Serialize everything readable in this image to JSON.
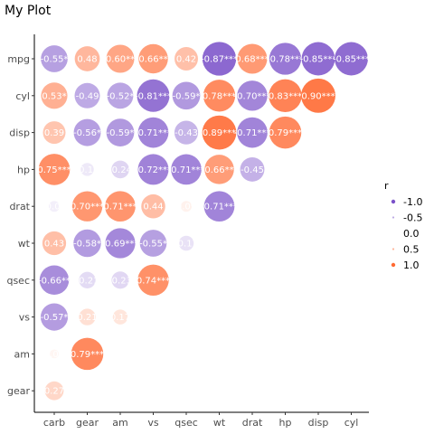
{
  "chart_data": {
    "type": "scatter",
    "title": "My Plot",
    "xlabel": "",
    "ylabel": "",
    "x_categories": [
      "carb",
      "gear",
      "am",
      "vs",
      "qsec",
      "wt",
      "drat",
      "hp",
      "disp",
      "cyl"
    ],
    "y_categories": [
      "mpg",
      "cyl",
      "disp",
      "hp",
      "drat",
      "wt",
      "qsec",
      "vs",
      "am",
      "gear"
    ],
    "color_scale": {
      "negative": "#7b52c9",
      "zero": "#ffffff",
      "positive": "#ff6a33",
      "domain": [
        -1,
        1
      ]
    },
    "legend": {
      "title": "r",
      "placement": "right",
      "entries": [
        {
          "label": "-1.0",
          "value": -1.0
        },
        {
          "label": "-0.5",
          "value": -0.5
        },
        {
          "label": "0.0",
          "value": 0.0
        },
        {
          "label": "0.5",
          "value": 0.5
        },
        {
          "label": "1.0",
          "value": 1.0
        }
      ]
    },
    "grid": false,
    "points": [
      {
        "row": "mpg",
        "col": "carb",
        "r": -0.55,
        "label": "-0.55*"
      },
      {
        "row": "mpg",
        "col": "gear",
        "r": 0.48,
        "label": "0.48"
      },
      {
        "row": "mpg",
        "col": "am",
        "r": 0.6,
        "label": "0.60**"
      },
      {
        "row": "mpg",
        "col": "vs",
        "r": 0.66,
        "label": "0.66**"
      },
      {
        "row": "mpg",
        "col": "qsec",
        "r": 0.42,
        "label": "0.42"
      },
      {
        "row": "mpg",
        "col": "wt",
        "r": -0.87,
        "label": "-0.87***"
      },
      {
        "row": "mpg",
        "col": "drat",
        "r": 0.68,
        "label": "0.68***"
      },
      {
        "row": "mpg",
        "col": "hp",
        "r": -0.78,
        "label": "-0.78***"
      },
      {
        "row": "mpg",
        "col": "disp",
        "r": -0.85,
        "label": "-0.85***"
      },
      {
        "row": "mpg",
        "col": "cyl",
        "r": -0.85,
        "label": "-0.85***"
      },
      {
        "row": "cyl",
        "col": "carb",
        "r": 0.53,
        "label": "0.53*"
      },
      {
        "row": "cyl",
        "col": "gear",
        "r": -0.49,
        "label": "-0.49"
      },
      {
        "row": "cyl",
        "col": "am",
        "r": -0.52,
        "label": "-0.52*"
      },
      {
        "row": "cyl",
        "col": "vs",
        "r": -0.81,
        "label": "-0.81***"
      },
      {
        "row": "cyl",
        "col": "qsec",
        "r": -0.59,
        "label": "-0.59*"
      },
      {
        "row": "cyl",
        "col": "wt",
        "r": 0.78,
        "label": "0.78***"
      },
      {
        "row": "cyl",
        "col": "drat",
        "r": -0.7,
        "label": "-0.70***"
      },
      {
        "row": "cyl",
        "col": "hp",
        "r": 0.83,
        "label": "0.83***"
      },
      {
        "row": "cyl",
        "col": "disp",
        "r": 0.9,
        "label": "0.90***"
      },
      {
        "row": "disp",
        "col": "carb",
        "r": 0.39,
        "label": "0.39"
      },
      {
        "row": "disp",
        "col": "gear",
        "r": -0.56,
        "label": "-0.56*"
      },
      {
        "row": "disp",
        "col": "am",
        "r": -0.59,
        "label": "-0.59*"
      },
      {
        "row": "disp",
        "col": "vs",
        "r": -0.71,
        "label": "-0.71***"
      },
      {
        "row": "disp",
        "col": "qsec",
        "r": -0.43,
        "label": "-0.43"
      },
      {
        "row": "disp",
        "col": "wt",
        "r": 0.89,
        "label": "0.89***"
      },
      {
        "row": "disp",
        "col": "drat",
        "r": -0.71,
        "label": "-0.71***"
      },
      {
        "row": "disp",
        "col": "hp",
        "r": 0.79,
        "label": "0.79***"
      },
      {
        "row": "hp",
        "col": "carb",
        "r": 0.75,
        "label": "0.75***"
      },
      {
        "row": "hp",
        "col": "gear",
        "r": -0.13,
        "label": "-0.13"
      },
      {
        "row": "hp",
        "col": "am",
        "r": -0.24,
        "label": "-0.24"
      },
      {
        "row": "hp",
        "col": "vs",
        "r": -0.72,
        "label": "-0.72***"
      },
      {
        "row": "hp",
        "col": "qsec",
        "r": -0.71,
        "label": "-0.71***"
      },
      {
        "row": "hp",
        "col": "wt",
        "r": 0.66,
        "label": "0.66**"
      },
      {
        "row": "hp",
        "col": "drat",
        "r": -0.45,
        "label": "-0.45"
      },
      {
        "row": "drat",
        "col": "carb",
        "r": -0.09,
        "label": "-0.09"
      },
      {
        "row": "drat",
        "col": "gear",
        "r": 0.7,
        "label": "0.70***"
      },
      {
        "row": "drat",
        "col": "am",
        "r": 0.71,
        "label": "0.71***"
      },
      {
        "row": "drat",
        "col": "vs",
        "r": 0.44,
        "label": "0.44"
      },
      {
        "row": "drat",
        "col": "qsec",
        "r": 0.09,
        "label": "0.09"
      },
      {
        "row": "drat",
        "col": "wt",
        "r": -0.71,
        "label": "-0.71***"
      },
      {
        "row": "wt",
        "col": "carb",
        "r": 0.43,
        "label": "0.43"
      },
      {
        "row": "wt",
        "col": "gear",
        "r": -0.58,
        "label": "-0.58*"
      },
      {
        "row": "wt",
        "col": "am",
        "r": -0.69,
        "label": "-0.69***"
      },
      {
        "row": "wt",
        "col": "vs",
        "r": -0.55,
        "label": "-0.55*"
      },
      {
        "row": "wt",
        "col": "qsec",
        "r": -0.17,
        "label": "-0.17"
      },
      {
        "row": "qsec",
        "col": "carb",
        "r": -0.66,
        "label": "-0.66**"
      },
      {
        "row": "qsec",
        "col": "gear",
        "r": -0.21,
        "label": "-0.21"
      },
      {
        "row": "qsec",
        "col": "am",
        "r": -0.23,
        "label": "-0.23"
      },
      {
        "row": "qsec",
        "col": "vs",
        "r": 0.74,
        "label": "0.74***"
      },
      {
        "row": "vs",
        "col": "carb",
        "r": -0.57,
        "label": "-0.57*"
      },
      {
        "row": "vs",
        "col": "gear",
        "r": 0.21,
        "label": "0.21"
      },
      {
        "row": "vs",
        "col": "am",
        "r": 0.17,
        "label": "0.17"
      },
      {
        "row": "am",
        "col": "carb",
        "r": 0.06,
        "label": "0.06"
      },
      {
        "row": "am",
        "col": "gear",
        "r": 0.79,
        "label": "0.79***"
      },
      {
        "row": "gear",
        "col": "carb",
        "r": 0.27,
        "label": "0.27"
      }
    ]
  }
}
